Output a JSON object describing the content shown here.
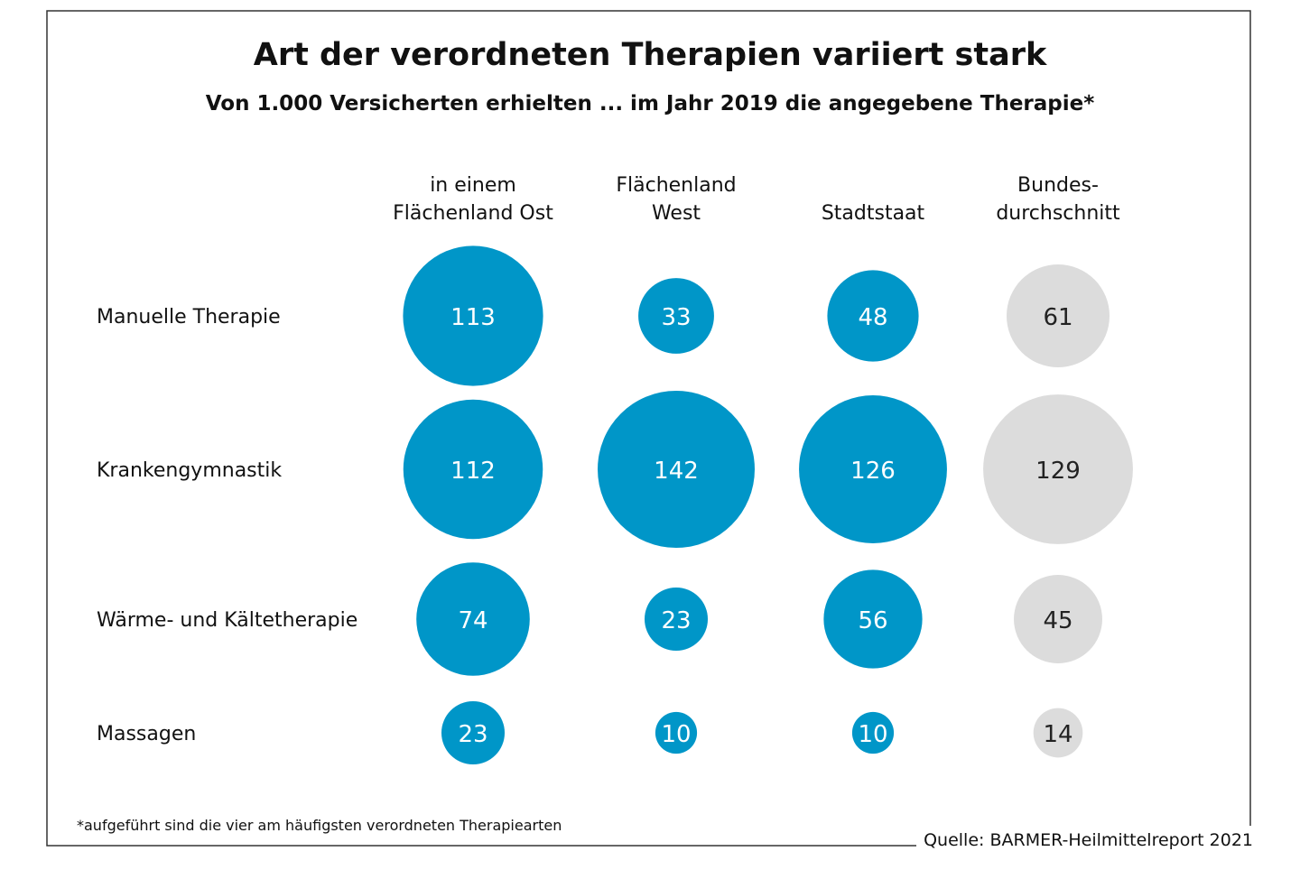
{
  "chart_data": {
    "type": "bubble-matrix",
    "title": "Art der verordneten Therapien variiert stark",
    "subtitle": "Von 1.000 Versicherten erhielten ... im Jahr 2019 die angegebene Therapie*",
    "categories": [
      "Manuelle Therapie",
      "Krankengymnastik",
      "Wärme- und Kältetherapie",
      "Massagen"
    ],
    "series": [
      {
        "name": "in einem\nFlächenland Ost",
        "color": "#0096c8",
        "label_color": "#ffffff",
        "values": [
          113,
          112,
          74,
          23
        ]
      },
      {
        "name": "Flächenland\nWest",
        "color": "#0096c8",
        "label_color": "#ffffff",
        "values": [
          33,
          142,
          23,
          10
        ]
      },
      {
        "name": "Stadtstaat",
        "color": "#0096c8",
        "label_color": "#ffffff",
        "values": [
          48,
          126,
          56,
          10
        ]
      },
      {
        "name": "Bundes-\ndurchschnitt",
        "color": "#dcdcdc",
        "label_color": "#222222",
        "values": [
          61,
          129,
          45,
          14
        ]
      }
    ],
    "footnote": "*aufgeführt sind die vier am häufigsten verordneten Therapiearten",
    "source": "Quelle: BARMER-Heilmittelreport 2021"
  }
}
